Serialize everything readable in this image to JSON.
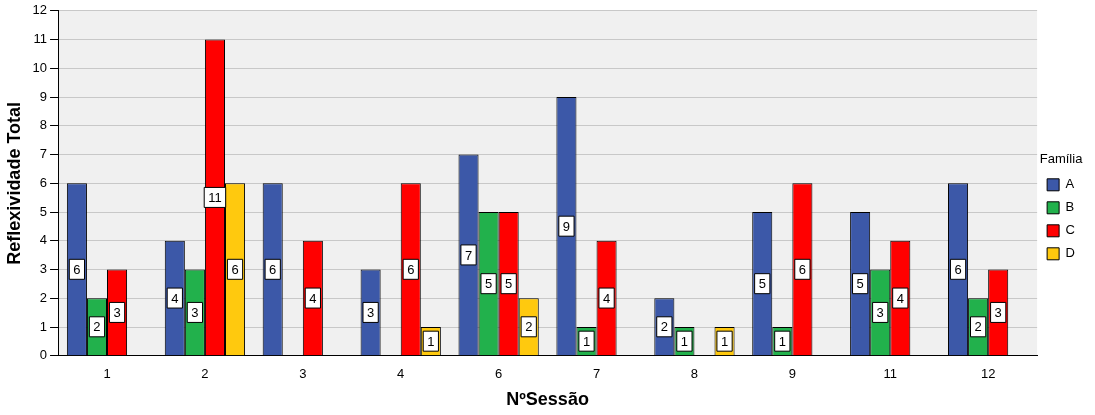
{
  "chart_data": {
    "type": "bar",
    "xlabel": "NºSessão",
    "ylabel": "Reflexividade Total",
    "legend_title": "Família",
    "legend": "right",
    "grid": "y",
    "data_labels": true,
    "categories": [
      "1",
      "2",
      "3",
      "4",
      "6",
      "7",
      "8",
      "9",
      "11",
      "12"
    ],
    "ylim": [
      0,
      12
    ],
    "yticks": [
      0,
      1,
      2,
      3,
      4,
      5,
      6,
      7,
      8,
      9,
      10,
      11,
      12
    ],
    "series": [
      {
        "name": "A",
        "color": "#3c58a8",
        "values": [
          6,
          4,
          6,
          3,
          7,
          9,
          2,
          5,
          5,
          6
        ]
      },
      {
        "name": "B",
        "color": "#22b14c",
        "values": [
          2,
          3,
          null,
          null,
          5,
          1,
          1,
          1,
          3,
          2
        ]
      },
      {
        "name": "C",
        "color": "#ff0000",
        "values": [
          3,
          11,
          4,
          6,
          5,
          4,
          null,
          6,
          4,
          3
        ]
      },
      {
        "name": "D",
        "color": "#ffc90e",
        "values": [
          null,
          6,
          null,
          1,
          2,
          null,
          1,
          null,
          null,
          null
        ]
      }
    ]
  }
}
